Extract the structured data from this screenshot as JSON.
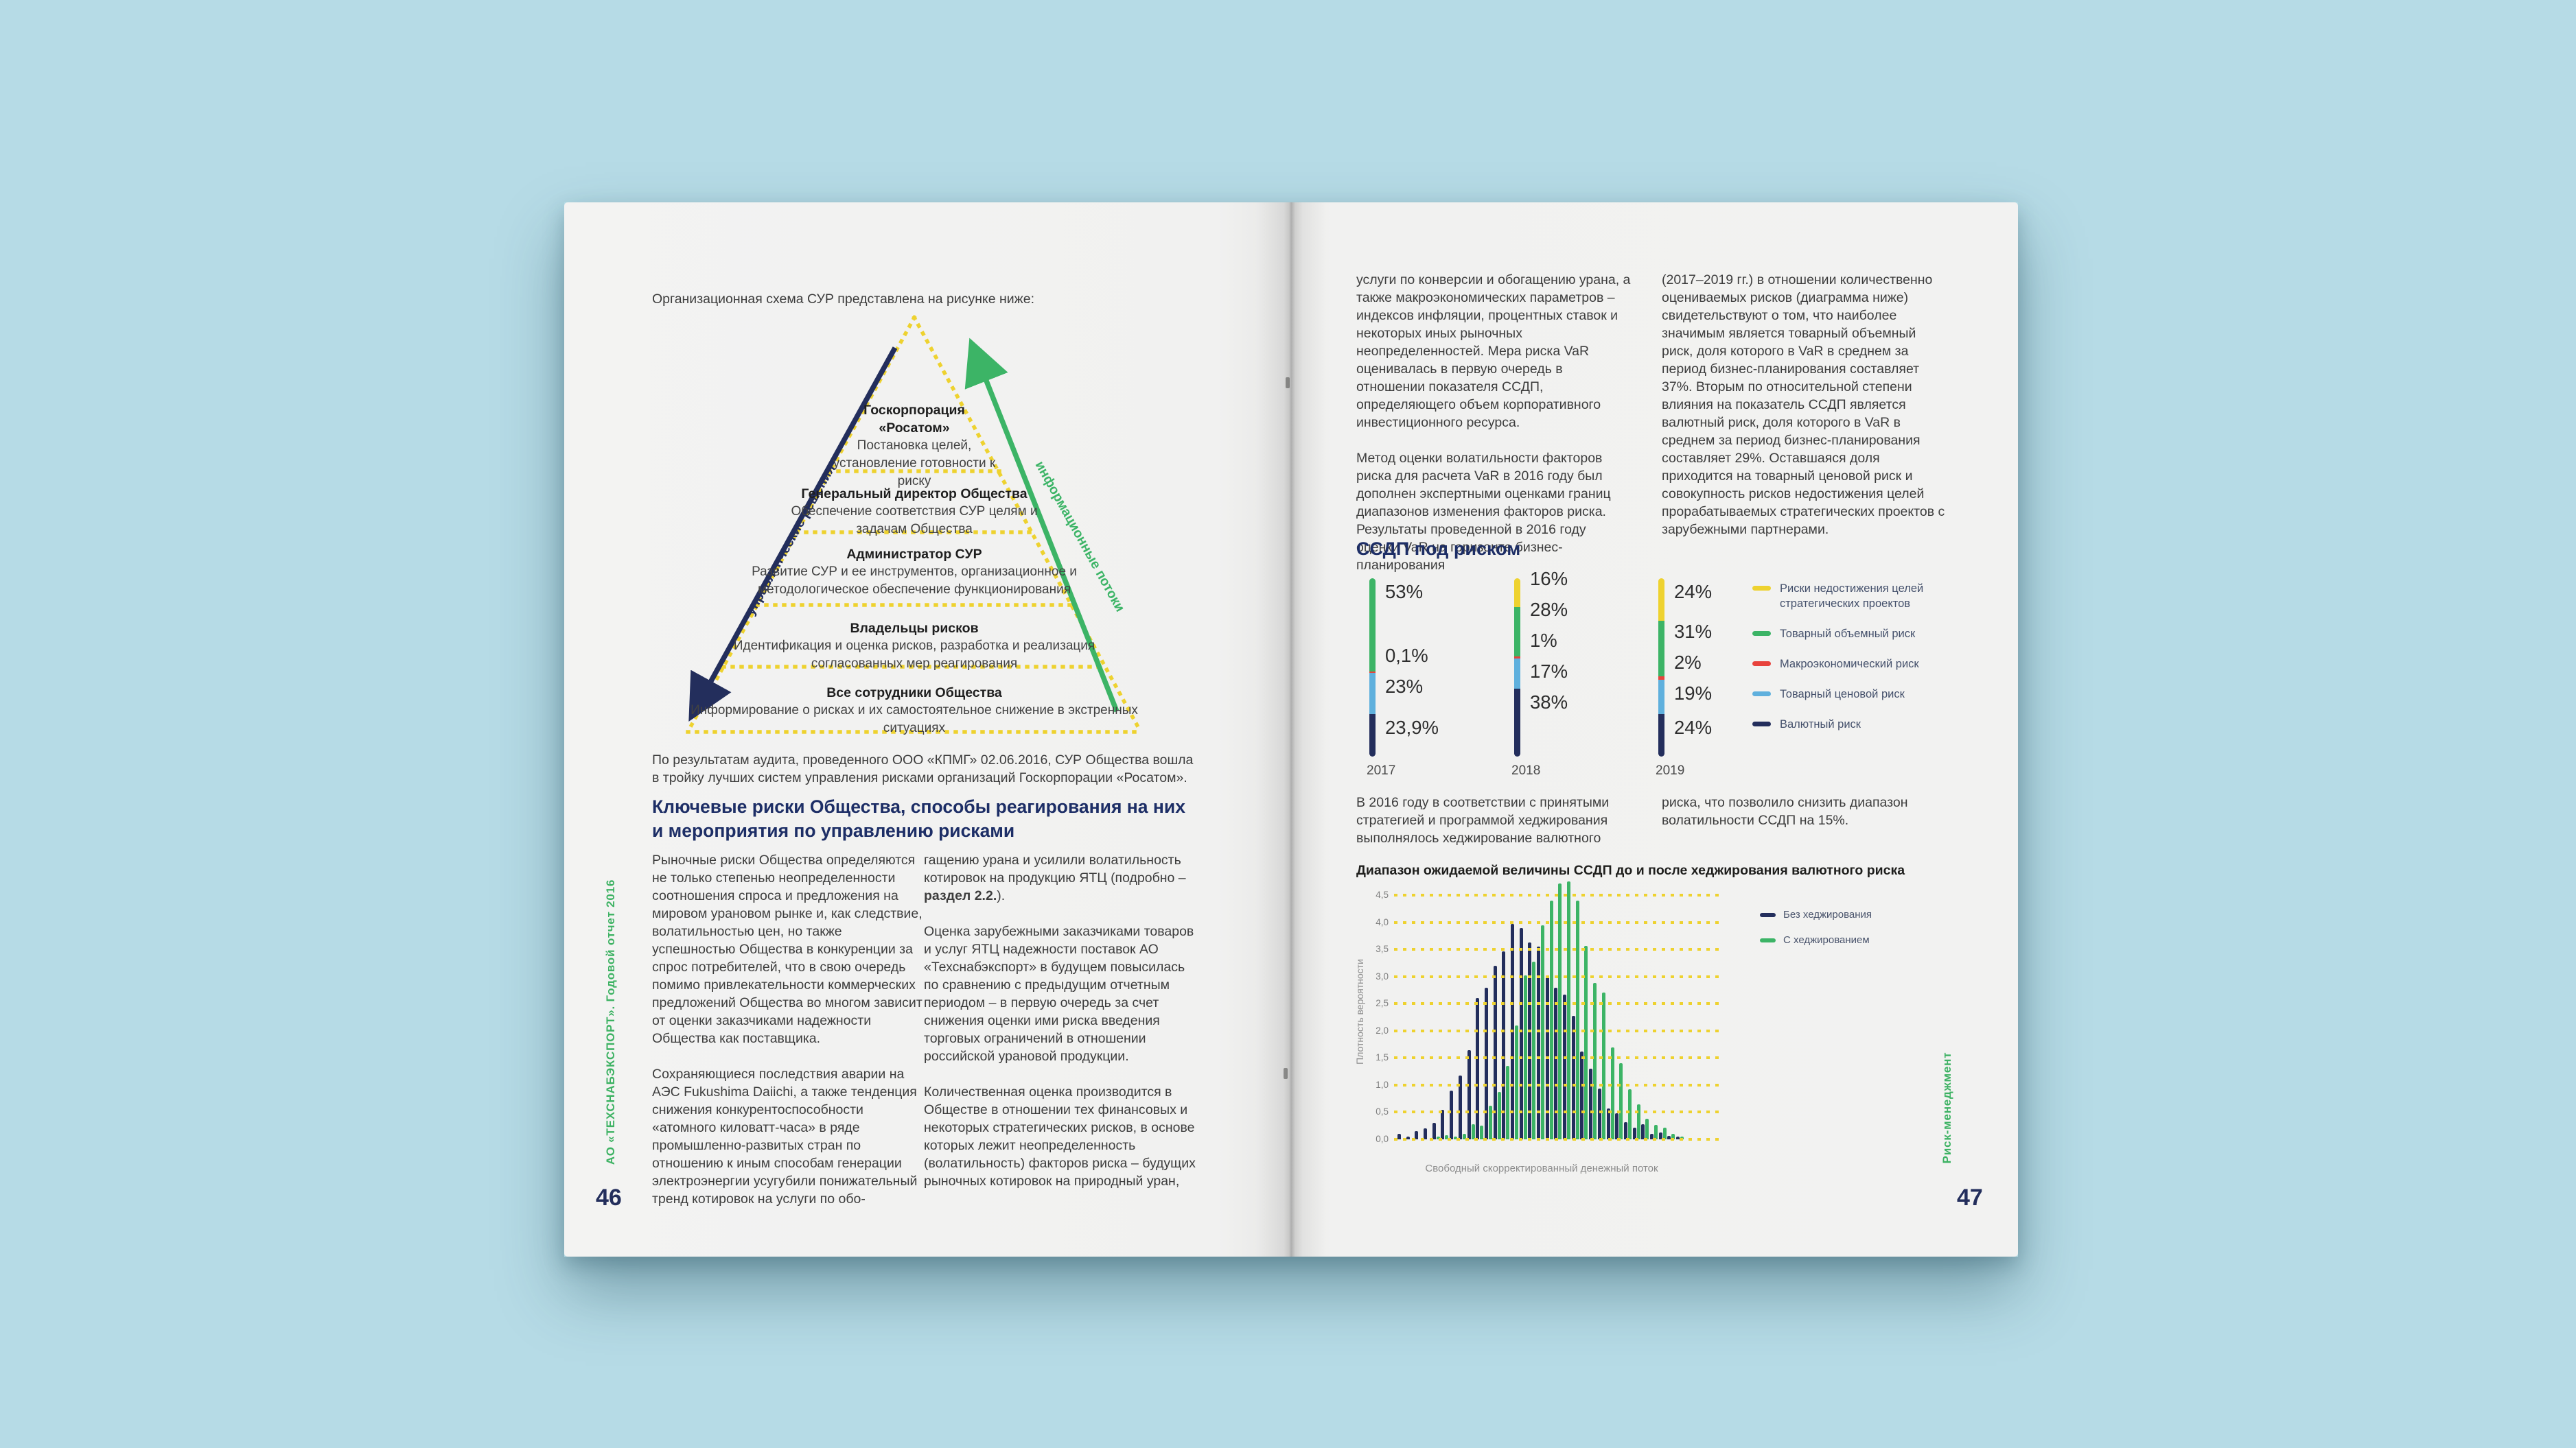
{
  "brand": {
    "navy": "#232e5c",
    "green": "#3cb466",
    "yellow": "#eed22f",
    "red": "#e8433c",
    "lightblue": "#5fb0dd",
    "margin_green": "#3db263",
    "heading_navy": "#1d2e66",
    "page_bg": "#f1f1f0",
    "background": "#b6dbe6"
  },
  "left_page": {
    "intro": "Организационная схема СУР представлена на рисунке ниже:",
    "pyramid": {
      "left_arrow_label": "управленческие решения",
      "right_arrow_label": "информационные потоки",
      "levels": [
        {
          "title": "Госкорпорация «Росатом»",
          "desc": "Постановка целей, установление готовности к риску"
        },
        {
          "title": "Генеральный директор Общества",
          "desc": "Обеспечение соответствия СУР целям и задачам Общества"
        },
        {
          "title": "Администратор СУР",
          "desc": "Развитие СУР и ее инструментов, организационное и методологическое обеспечение функционирования"
        },
        {
          "title": "Владельцы рисков",
          "desc": "Идентификация и оценка рисков, разработка и реализация согласованных мер реагирования"
        },
        {
          "title": "Все сотрудники Общества",
          "desc": "Информирование о рисках и их самостоятельное снижение в экстренных ситуациях"
        }
      ]
    },
    "audit_note": "По результатам аудита, проведенного ООО «КПМГ» 02.06.2016, СУР Общества вошла в тройку лучших систем управления рисками организаций Госкорпорации «Росатом».",
    "section_heading": "Ключевые риски Общества, способы реагирования на них и мероприятия по управлению рисками",
    "col1": [
      "Рыночные риски Общества определяются не только степенью неопределенности соотношения спроса и предложения на мировом урановом рынке и, как следствие, волатильностью цен, но также успешностью Общества в конкуренции за спрос потребителей, что в свою очередь помимо привлекательности коммерческих предложений Общества во многом зависит от оценки заказчиками надежности Общества как поставщика.",
      "Сохраняющиеся последствия аварии на АЭС Fukushima Daiichi, а также тенденция снижения конкурентоспособности «атомного киловатт-часа» в ряде промышленно-развитых стран по отношению к иным способам генерации электроэнергии усугубили понижательный тренд котировок на услуги по обо-"
    ],
    "col2_p1": {
      "before": "гащению урана и усилили волатильность котировок на продукцию ЯТЦ (подробно – ",
      "bold": "раздел 2.2.",
      "after": ")."
    },
    "col2": [
      "Оценка зарубежными заказчиками товаров и услуг ЯТЦ надежности поставок АО «Техснабэкспорт» в будущем повысилась по сравнению с предыдущим отчетным периодом – в первую очередь за счет снижения оценки ими риска введения торговых ограничений в отношении российской урановой продукции.",
      "Количественная оценка производится в Обществе в отношении тех финансовых и некоторых стратегических рисков, в основе которых лежит неопределенность (волатильность) факторов риска – будущих рыночных котировок на природный уран,"
    ],
    "margin_text": "АО «ТЕХСНАБЭКСПОРТ». Годовой отчет 2016",
    "page_number": "46"
  },
  "right_page": {
    "col1": [
      "услуги по конверсии и обогащению урана, а также макроэкономических параметров – индексов инфляции, процентных ставок и некоторых иных рыночных неопределенностей. Мера риска VaR оценивалась в первую очередь в отношении показателя ССДП, определяющего объем корпоративного инвестиционного ресурса.",
      "Метод оценки волатильности факторов риска для расчета VaR в 2016 году был дополнен экспертными оценками границ диапазонов изменения факторов риска. Результаты проведенной в 2016 году оценки VaR на горизонте бизнес-планирования"
    ],
    "col2": [
      "(2017–2019 гг.) в отношении количественно оцениваемых рисков (диаграмма ниже) свидетельствуют о том, что наиболее значимым является товарный объемный риск, доля которого в VaR в среднем за период бизнес-планирования составляет 37%. Вторым по относительной степени влияния на показатель ССДП является валютный риск, доля которого в VaR в среднем за период бизнес-планирования составляет 29%. Оставшаяся доля приходится на товарный ценовой риск и совокупность рисков недостижения целей прорабатываемых стратегических проектов с зарубежными партнерами."
    ],
    "chart1_heading": "ССДП под риском",
    "hedging_note_col1": "В 2016 году в соответствии с принятыми стратегией и программой хеджирования выполнялось хеджирование валютного",
    "hedging_note_col2": "риска, что позволило снизить диапазон волатильности ССДП на 15%.",
    "margin_text": "Риск-менеджмент",
    "page_number": "47"
  },
  "chart_data": [
    {
      "name": "ssdp_var_structure",
      "type": "bar",
      "stacked": true,
      "unit": "%",
      "title": "ССДП под риском",
      "categories": [
        "2017",
        "2018",
        "2019"
      ],
      "series": [
        {
          "name": "Риски недостижения целей стратегических проектов",
          "color": "#eed22f",
          "values": [
            0,
            16,
            24
          ]
        },
        {
          "name": "Товарный объемный риск",
          "color": "#3cb466",
          "values": [
            53,
            28,
            31
          ]
        },
        {
          "name": "Макроэкономический риск",
          "color": "#e8433c",
          "values": [
            0.1,
            1,
            2
          ]
        },
        {
          "name": "Товарный ценовой риск",
          "color": "#5fb0dd",
          "values": [
            23,
            17,
            19
          ]
        },
        {
          "name": "Валютный риск",
          "color": "#232e5c",
          "values": [
            23.9,
            38,
            24
          ]
        }
      ],
      "segment_labels": [
        [
          "53%",
          "0,1%",
          "23%",
          "23,9%"
        ],
        [
          "16%",
          "28%",
          "1%",
          "17%",
          "38%"
        ],
        [
          "24%",
          "31%",
          "2%",
          "19%",
          "24%"
        ]
      ],
      "legend_position": "right"
    },
    {
      "name": "ssdp_hedging_distribution",
      "type": "bar",
      "subtype": "histogram",
      "title": "Диапазон ожидаемой величины ССДП до и после хеджирования валютного риска",
      "xlabel": "Свободный скорректированный денежный поток",
      "ylabel": "Плотность вероятности",
      "ylim": [
        0,
        4.5
      ],
      "ytick_step": 0.5,
      "yticks": [
        "0,0",
        "0,5",
        "1,0",
        "1,5",
        "2,0",
        "2,5",
        "3,0",
        "3,5",
        "4,0",
        "4,5"
      ],
      "grid": "dotted-yellow-horizontal",
      "legend": [
        {
          "label": "Без хеджирования",
          "color": "#232e5c"
        },
        {
          "label": "С хеджированием",
          "color": "#3cb466"
        }
      ],
      "series": [
        {
          "name": "Без хеджирования",
          "color": "#232e5c",
          "values": [
            0.1,
            0.05,
            0.15,
            0.2,
            0.3,
            0.55,
            0.9,
            1.18,
            1.65,
            2.6,
            2.8,
            3.2,
            3.47,
            3.97,
            3.9,
            3.63,
            3.55,
            3.02,
            2.8,
            2.67,
            2.28,
            1.62,
            1.3,
            0.93,
            0.57,
            0.48,
            0.32,
            0.22,
            0.28,
            0.1,
            0.13,
            0.06,
            0.05
          ]
        },
        {
          "name": "С хеджированием",
          "color": "#3cb466",
          "values": [
            0,
            0,
            0,
            0,
            0.05,
            0.08,
            0.05,
            0.1,
            0.28,
            0.25,
            0.62,
            0.87,
            1.35,
            2.1,
            3.02,
            3.27,
            3.95,
            4.4,
            4.72,
            4.75,
            4.4,
            3.57,
            2.88,
            2.7,
            1.7,
            1.4,
            0.92,
            0.65,
            0.38,
            0.27,
            0.22,
            0.1,
            0.05
          ]
        }
      ]
    }
  ]
}
